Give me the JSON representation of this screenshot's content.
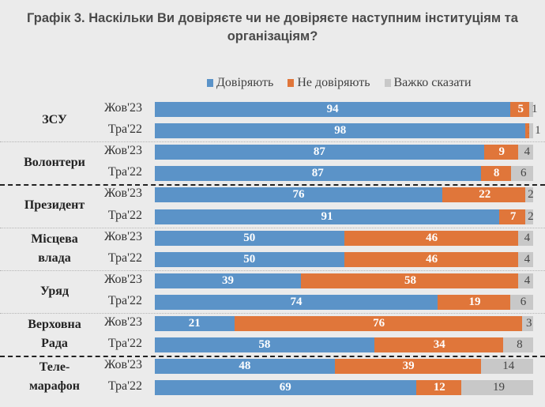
{
  "title_line1": "Графік 3. Наскільки Ви довіряєте чи не довіряєте наступним інституціям та",
  "title_line2": "організаціям?",
  "colors": {
    "trust": "#5b93c8",
    "distrust": "#e0763a",
    "hard": "#c8c8c8"
  },
  "chart_data": {
    "type": "bar",
    "orientation": "horizontal",
    "stacked": true,
    "title": "Графік 3. Наскільки Ви довіряєте чи не довіряєте наступним інституціям та організаціям?",
    "legend": [
      "Довіряють",
      "Не довіряють",
      "Важко сказати"
    ],
    "legend_position": "top",
    "xlim": [
      0,
      100
    ],
    "groups": [
      {
        "name": "ЗСУ",
        "rows": [
          {
            "period": "Жов'23",
            "values": [
              94,
              5,
              1
            ]
          },
          {
            "period": "Тра'22",
            "values": [
              98,
              1,
              1
            ]
          }
        ]
      },
      {
        "name": "Волонтери",
        "rows": [
          {
            "period": "Жов'23",
            "values": [
              87,
              9,
              4
            ]
          },
          {
            "period": "Тра'22",
            "values": [
              87,
              8,
              6
            ]
          }
        ]
      },
      {
        "name": "Президент",
        "rows": [
          {
            "period": "Жов'23",
            "values": [
              76,
              22,
              2
            ]
          },
          {
            "period": "Тра'22",
            "values": [
              91,
              7,
              2
            ]
          }
        ]
      },
      {
        "name": "Місцева влада",
        "rows": [
          {
            "period": "Жов'23",
            "values": [
              50,
              46,
              4
            ]
          },
          {
            "period": "Тра'22",
            "values": [
              50,
              46,
              4
            ]
          }
        ]
      },
      {
        "name": "Уряд",
        "rows": [
          {
            "period": "Жов'23",
            "values": [
              39,
              58,
              4
            ]
          },
          {
            "period": "Тра'22",
            "values": [
              74,
              19,
              6
            ]
          }
        ]
      },
      {
        "name": "Верховна Рада",
        "rows": [
          {
            "period": "Жов'23",
            "values": [
              21,
              76,
              3
            ]
          },
          {
            "period": "Тра'22",
            "values": [
              58,
              34,
              8
            ]
          }
        ]
      },
      {
        "name": "Теле-марафон",
        "rows": [
          {
            "period": "Жов'23",
            "values": [
              48,
              39,
              14
            ]
          },
          {
            "period": "Тра'22",
            "values": [
              69,
              12,
              19
            ]
          }
        ]
      }
    ]
  },
  "group_label_lines": [
    [
      "ЗСУ"
    ],
    [
      "Волонтери"
    ],
    [
      "Президент"
    ],
    [
      "Місцева",
      "влада"
    ],
    [
      "Уряд"
    ],
    [
      "Верховна",
      "Рада"
    ],
    [
      "Теле-",
      "марафон"
    ]
  ],
  "separators_after_group": [
    "dotted",
    "dashed",
    "dotted",
    "dotted",
    "dotted",
    "dashed"
  ]
}
